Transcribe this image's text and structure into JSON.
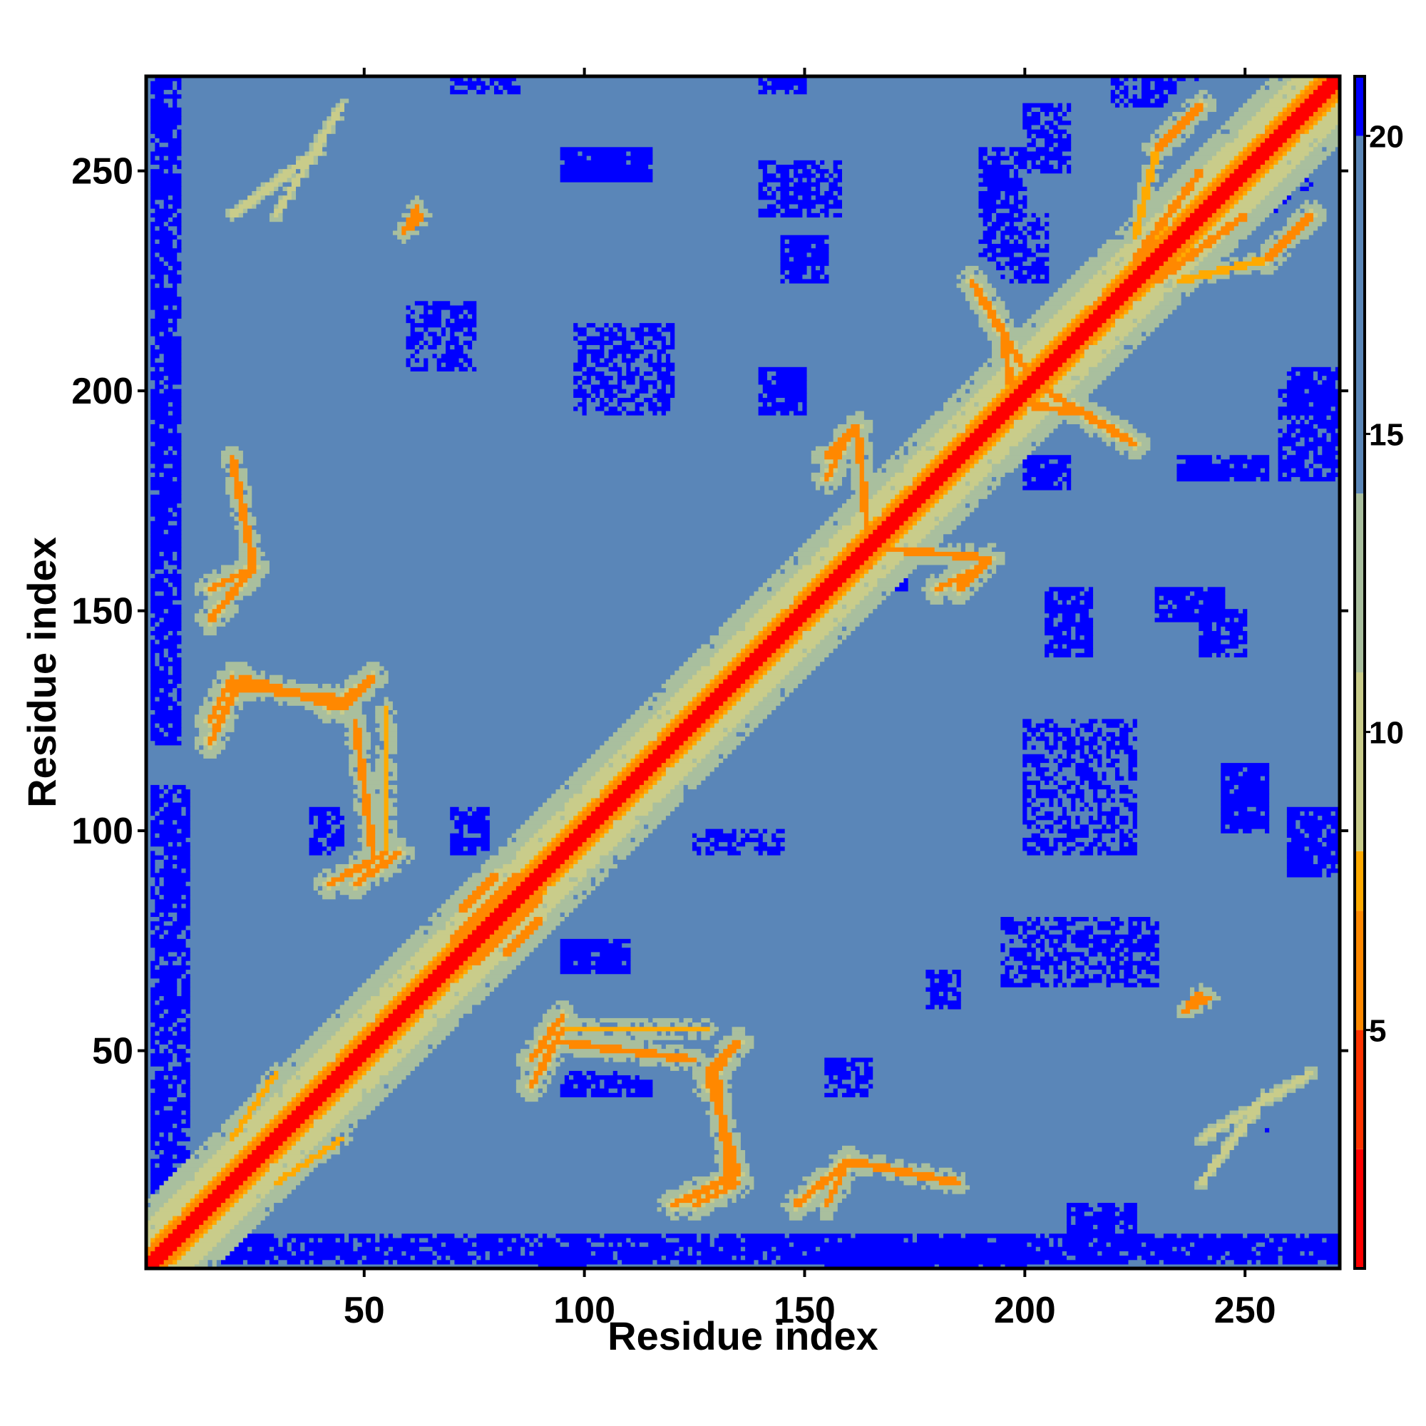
{
  "chart_data": {
    "type": "heatmap",
    "title": "",
    "xlabel": "Residue index",
    "ylabel": "Residue index",
    "n_residues": 271,
    "xlim": [
      1,
      271
    ],
    "ylim": [
      1,
      271
    ],
    "x_ticks": [
      50,
      100,
      150,
      200,
      250
    ],
    "y_ticks": [
      50,
      100,
      150,
      200,
      250
    ],
    "x_tick_labels": [
      "50",
      "100",
      "150",
      "200",
      "250"
    ],
    "y_tick_labels": [
      "50",
      "100",
      "150",
      "200",
      "250"
    ],
    "colorbar": {
      "range": [
        1,
        21
      ],
      "ticks": [
        5,
        10,
        15,
        20
      ],
      "tick_labels": [
        "5",
        "10",
        "15",
        "20"
      ],
      "colors": [
        {
          "max": 3,
          "color": "#ff0000"
        },
        {
          "max": 5,
          "color": "#ff3300"
        },
        {
          "max": 7,
          "color": "#ff8800"
        },
        {
          "max": 8,
          "color": "#ffaa00"
        },
        {
          "max": 11,
          "color": "#c9cc8a"
        },
        {
          "max": 14,
          "color": "#a9bf9e"
        },
        {
          "max": 20,
          "color": "#5a86b8"
        },
        {
          "max": 21,
          "color": "#0000ff"
        }
      ]
    },
    "diagonal_value": 1,
    "background_value": 18,
    "distant_value": 21,
    "contact_segments": [
      {
        "a": [
          5,
          5
        ],
        "b": [
          271,
          271
        ],
        "value": 2,
        "halo": 11
      },
      {
        "a": [
          15,
          155
        ],
        "b": [
          25,
          160
        ],
        "value": 6,
        "halo": 6
      },
      {
        "a": [
          15,
          120
        ],
        "b": [
          22,
          135
        ],
        "value": 6,
        "halo": 6
      },
      {
        "a": [
          22,
          135
        ],
        "b": [
          45,
          128
        ],
        "value": 7,
        "halo": 6
      },
      {
        "a": [
          45,
          128
        ],
        "b": [
          52,
          135
        ],
        "value": 6,
        "halo": 6
      },
      {
        "a": [
          48,
          125
        ],
        "b": [
          52,
          95
        ],
        "value": 7,
        "halo": 6
      },
      {
        "a": [
          48,
          88
        ],
        "b": [
          58,
          95
        ],
        "value": 6,
        "halo": 6
      },
      {
        "a": [
          70,
          75
        ],
        "b": [
          85,
          90
        ],
        "value": 6,
        "halo": 6
      },
      {
        "a": [
          82,
          72
        ],
        "b": [
          90,
          80
        ],
        "value": 6,
        "halo": 6
      },
      {
        "a": [
          88,
          42
        ],
        "b": [
          95,
          55
        ],
        "value": 6,
        "halo": 6
      },
      {
        "a": [
          95,
          55
        ],
        "b": [
          128,
          55
        ],
        "value": 8,
        "halo": 6
      },
      {
        "a": [
          128,
          42
        ],
        "b": [
          133,
          50
        ],
        "value": 6,
        "halo": 6
      },
      {
        "a": [
          125,
          15
        ],
        "b": [
          135,
          20
        ],
        "value": 6,
        "halo": 6
      },
      {
        "a": [
          133,
          20
        ],
        "b": [
          130,
          45
        ],
        "value": 7,
        "halo": 6
      },
      {
        "a": [
          148,
          15
        ],
        "b": [
          160,
          25
        ],
        "value": 6,
        "halo": 6
      },
      {
        "a": [
          160,
          25
        ],
        "b": [
          185,
          20
        ],
        "value": 7,
        "halo": 6
      },
      {
        "a": [
          155,
          185
        ],
        "b": [
          162,
          192
        ],
        "value": 6,
        "halo": 6
      },
      {
        "a": [
          162,
          192
        ],
        "b": [
          165,
          160
        ],
        "value": 7,
        "halo": 6
      },
      {
        "a": [
          180,
          155
        ],
        "b": [
          190,
          160
        ],
        "value": 6,
        "halo": 6
      },
      {
        "a": [
          190,
          222
        ],
        "b": [
          200,
          205
        ],
        "value": 6,
        "halo": 6
      },
      {
        "a": [
          200,
          197
        ],
        "b": [
          213,
          195
        ],
        "value": 7,
        "halo": 6
      },
      {
        "a": [
          213,
          195
        ],
        "b": [
          225,
          188
        ],
        "value": 6,
        "halo": 6
      },
      {
        "a": [
          225,
          230
        ],
        "b": [
          240,
          250
        ],
        "value": 7,
        "halo": 6
      },
      {
        "a": [
          230,
          255
        ],
        "b": [
          240,
          265
        ],
        "value": 6,
        "halo": 6
      },
      {
        "a": [
          235,
          225
        ],
        "b": [
          255,
          230
        ],
        "value": 8,
        "halo": 6
      },
      {
        "a": [
          240,
          20
        ],
        "b": [
          255,
          40
        ],
        "value": 9,
        "halo": 7
      },
      {
        "a": [
          30,
          240
        ],
        "b": [
          45,
          265
        ],
        "value": 9,
        "halo": 7
      },
      {
        "a": [
          59,
          236
        ],
        "b": [
          62,
          242
        ],
        "value": 7,
        "halo": 5
      },
      {
        "a": [
          237,
          60
        ],
        "b": [
          240,
          63
        ],
        "value": 7,
        "halo": 5
      },
      {
        "a": [
          30,
          20
        ],
        "b": [
          45,
          30
        ],
        "value": 8,
        "halo": 6
      }
    ],
    "blue_regions": [
      {
        "x": [
          2,
          8
        ],
        "y": [
          120,
          271
        ],
        "density": 0.85
      },
      {
        "x": [
          2,
          10
        ],
        "y": [
          5,
          110
        ],
        "density": 0.8
      },
      {
        "x": [
          5,
          271
        ],
        "y": [
          2,
          8
        ],
        "density": 0.85
      },
      {
        "x": [
          95,
          115
        ],
        "y": [
          40,
          45
        ],
        "density": 0.9
      },
      {
        "x": [
          95,
          110
        ],
        "y": [
          68,
          75
        ],
        "density": 0.95
      },
      {
        "x": [
          60,
          75
        ],
        "y": [
          205,
          220
        ],
        "density": 0.6
      },
      {
        "x": [
          98,
          120
        ],
        "y": [
          195,
          215
        ],
        "density": 0.6
      },
      {
        "x": [
          95,
          115
        ],
        "y": [
          248,
          255
        ],
        "density": 0.95
      },
      {
        "x": [
          140,
          150
        ],
        "y": [
          195,
          205
        ],
        "density": 0.9
      },
      {
        "x": [
          200,
          225
        ],
        "y": [
          95,
          125
        ],
        "density": 0.55
      },
      {
        "x": [
          195,
          230
        ],
        "y": [
          65,
          80
        ],
        "density": 0.6
      },
      {
        "x": [
          245,
          255
        ],
        "y": [
          100,
          115
        ],
        "density": 0.9
      },
      {
        "x": [
          260,
          271
        ],
        "y": [
          195,
          205
        ],
        "density": 0.9
      },
      {
        "x": [
          38,
          48
        ],
        "y": [
          95,
          105
        ],
        "density": 0.7
      },
      {
        "x": [
          70,
          78
        ],
        "y": [
          95,
          105
        ],
        "density": 0.8
      },
      {
        "x": [
          190,
          200
        ],
        "y": [
          240,
          255
        ],
        "density": 0.7
      },
      {
        "x": [
          200,
          210
        ],
        "y": [
          250,
          265
        ],
        "density": 0.7
      },
      {
        "x": [
          235,
          255
        ],
        "y": [
          180,
          185
        ],
        "density": 0.85
      },
      {
        "x": [
          230,
          245
        ],
        "y": [
          148,
          155
        ],
        "density": 0.85
      },
      {
        "x": [
          205,
          215
        ],
        "y": [
          140,
          155
        ],
        "density": 0.8
      },
      {
        "x": [
          140,
          158
        ],
        "y": [
          240,
          252
        ],
        "density": 0.7
      },
      {
        "x": [
          145,
          155
        ],
        "y": [
          225,
          235
        ],
        "density": 0.8
      },
      {
        "x": [
          190,
          205
        ],
        "y": [
          225,
          240
        ],
        "density": 0.6
      },
      {
        "x": [
          185,
          200
        ],
        "y": [
          190,
          200
        ],
        "density": 0.8
      },
      {
        "x": [
          178,
          185
        ],
        "y": [
          60,
          68
        ],
        "density": 0.8
      },
      {
        "x": [
          155,
          165
        ],
        "y": [
          40,
          48
        ],
        "density": 0.7
      },
      {
        "x": [
          200,
          210
        ],
        "y": [
          178,
          185
        ],
        "density": 0.85
      },
      {
        "x": [
          240,
          250
        ],
        "y": [
          140,
          150
        ],
        "density": 0.8
      },
      {
        "x": [
          255,
          265
        ],
        "y": [
          240,
          255
        ],
        "density": 0.6
      },
      {
        "x": [
          90,
          100
        ],
        "y": [
          1,
          5
        ],
        "density": 0.9
      },
      {
        "x": [
          155,
          200
        ],
        "y": [
          1,
          6
        ],
        "density": 0.9
      },
      {
        "x": [
          70,
          85
        ],
        "y": [
          268,
          271
        ],
        "density": 0.8
      },
      {
        "x": [
          140,
          150
        ],
        "y": [
          268,
          271
        ],
        "density": 0.8
      },
      {
        "x": [
          220,
          240
        ],
        "y": [
          265,
          271
        ],
        "density": 0.6
      },
      {
        "x": [
          160,
          175
        ],
        "y": [
          155,
          160
        ],
        "density": 0.5
      },
      {
        "x": [
          125,
          145
        ],
        "y": [
          95,
          100
        ],
        "density": 0.6
      },
      {
        "x": [
          240,
          255
        ],
        "y": [
          30,
          35
        ],
        "density": 0.5
      },
      {
        "x": [
          210,
          225
        ],
        "y": [
          5,
          15
        ],
        "density": 0.8
      },
      {
        "x": [
          260,
          271
        ],
        "y": [
          90,
          105
        ],
        "density": 0.9
      },
      {
        "x": [
          258,
          271
        ],
        "y": [
          180,
          200
        ],
        "density": 0.75
      }
    ]
  }
}
